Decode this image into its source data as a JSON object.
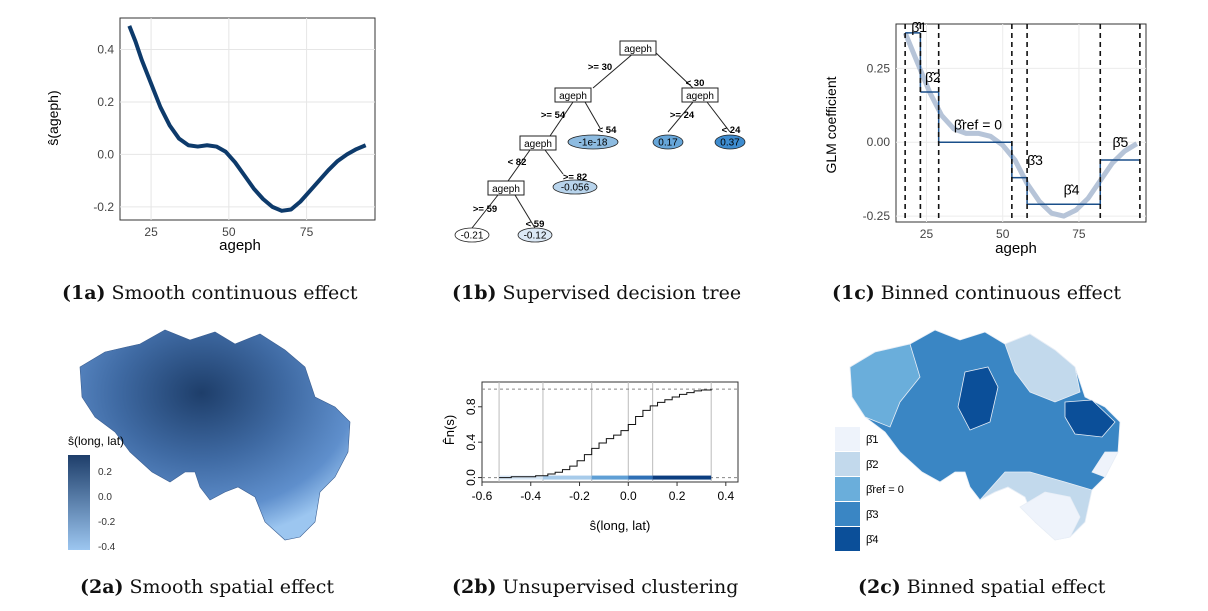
{
  "captions": {
    "c1a": {
      "tag": "(1a)",
      "text": "Smooth continuous effect"
    },
    "c1b": {
      "tag": "(1b)",
      "text": "Supervised decision tree"
    },
    "c1c": {
      "tag": "(1c)",
      "text": "Binned continuous effect"
    },
    "c2a": {
      "tag": "(2a)",
      "text": "Smooth spatial effect"
    },
    "c2b": {
      "tag": "(2b)",
      "text": "Unsupervised clustering"
    },
    "c2c": {
      "tag": "(2c)",
      "text": "Binned spatial effect"
    }
  },
  "chart_data": [
    {
      "id": "1a",
      "type": "line",
      "xlabel": "ageph",
      "ylabel": "ŝ(ageph)",
      "xlim": [
        15,
        97
      ],
      "ylim": [
        -0.25,
        0.52
      ],
      "xticks": [
        25,
        50,
        75
      ],
      "yticks": [
        0.4,
        0.2,
        0.0,
        -0.2
      ],
      "ytick_labels": [
        "0.4",
        "0.2",
        "0.0",
        "-0.2"
      ],
      "grid": true,
      "line_color": "#0d3a6b",
      "x": [
        18,
        20,
        22,
        25,
        28,
        31,
        34,
        37,
        40,
        43,
        46,
        49,
        52,
        55,
        58,
        61,
        64,
        67,
        70,
        73,
        76,
        79,
        82,
        85,
        88,
        91,
        94
      ],
      "y": [
        0.49,
        0.43,
        0.36,
        0.27,
        0.18,
        0.11,
        0.06,
        0.035,
        0.03,
        0.035,
        0.03,
        0.01,
        -0.03,
        -0.08,
        -0.13,
        -0.17,
        -0.2,
        -0.215,
        -0.21,
        -0.18,
        -0.14,
        -0.1,
        -0.06,
        -0.025,
        0.0,
        0.02,
        0.035
      ]
    },
    {
      "id": "1b",
      "type": "tree",
      "nodes": [
        {
          "label": "ageph"
        },
        {
          "label": "ageph"
        },
        {
          "label": "ageph"
        },
        {
          "label": "ageph"
        },
        {
          "label": "ageph"
        },
        {
          "label": "-0.21",
          "color": "#ffffff"
        },
        {
          "label": "-0.12",
          "color": "#dbe8f5"
        },
        {
          "label": "-0.056",
          "color": "#b8d4ec"
        },
        {
          "label": "-1e-18",
          "color": "#8dbbe0"
        },
        {
          "label": "0.17",
          "color": "#67a6d9"
        },
        {
          "label": "0.37",
          "color": "#3e8ccf"
        }
      ],
      "edges": [
        ">= 30",
        "< 30",
        ">= 54",
        "< 54",
        ">= 24",
        "< 24",
        "< 82",
        ">= 82",
        ">= 59",
        "< 59"
      ]
    },
    {
      "id": "1c",
      "type": "step",
      "xlabel": "ageph",
      "ylabel": "GLM coefficient",
      "xlim": [
        15,
        97
      ],
      "ylim": [
        -0.27,
        0.4
      ],
      "xticks": [
        25,
        50,
        75
      ],
      "yticks": [
        0.25,
        0.0,
        -0.25
      ],
      "ytick_labels": [
        "0.25",
        "0.00",
        "-0.25"
      ],
      "breaks": [
        18,
        23,
        29,
        53,
        58,
        82,
        95
      ],
      "bin_values": [
        0.37,
        0.17,
        0.0,
        -0.12,
        -0.21,
        -0.06
      ],
      "bin_labels": [
        "β̂1",
        "β̂2",
        "β̂ref = 0",
        "β̂3",
        "β̂4",
        "β̂5"
      ],
      "smooth_x": [
        18,
        22,
        26,
        30,
        34,
        38,
        42,
        46,
        50,
        54,
        58,
        62,
        66,
        70,
        74,
        78,
        82,
        86,
        90,
        94
      ],
      "smooth_y": [
        0.37,
        0.27,
        0.17,
        0.09,
        0.045,
        0.03,
        0.03,
        0.02,
        -0.01,
        -0.06,
        -0.14,
        -0.2,
        -0.24,
        -0.25,
        -0.23,
        -0.19,
        -0.13,
        -0.07,
        -0.03,
        -0.005
      ],
      "line_color": "#1a4f8a",
      "smooth_color": "#b6c4d8"
    },
    {
      "id": "2a",
      "type": "map",
      "legend_title": "ŝ(long, lat)",
      "legend_ticks": [
        "0.2",
        "0.0",
        "-0.2",
        "-0.4"
      ],
      "legend_range": [
        -0.5,
        0.3
      ],
      "colors": [
        "#9cc6f0",
        "#1e3e6a"
      ]
    },
    {
      "id": "2b",
      "type": "line",
      "xlabel": "ŝ(long, lat)",
      "ylabel": "F̂n(s)",
      "xlim": [
        -0.6,
        0.45
      ],
      "ylim": [
        -0.05,
        1.08
      ],
      "xticks": [
        -0.6,
        -0.4,
        -0.2,
        0.0,
        0.2,
        0.4
      ],
      "xtick_labels": [
        "-0.6",
        "-0.4",
        "-0.2",
        "0.0",
        "0.2",
        "0.4"
      ],
      "yticks": [
        0.0,
        0.4,
        0.8
      ],
      "ytick_labels": [
        "0.0",
        "0.4",
        "0.8"
      ],
      "breaks": [
        -0.53,
        -0.35,
        -0.15,
        0.0,
        0.1,
        0.34
      ],
      "band_colors": [
        "#d7e7f6",
        "#a7cbea",
        "#5f9fd5",
        "#2f70b6",
        "#0c3e80"
      ],
      "x": [
        -0.53,
        -0.48,
        -0.43,
        -0.38,
        -0.33,
        -0.3,
        -0.27,
        -0.24,
        -0.21,
        -0.18,
        -0.15,
        -0.12,
        -0.09,
        -0.06,
        -0.03,
        0.0,
        0.03,
        0.06,
        0.09,
        0.12,
        0.15,
        0.18,
        0.21,
        0.24,
        0.27,
        0.3,
        0.34
      ],
      "y": [
        0.0,
        0.01,
        0.01,
        0.02,
        0.04,
        0.06,
        0.09,
        0.13,
        0.19,
        0.26,
        0.33,
        0.39,
        0.44,
        0.48,
        0.53,
        0.6,
        0.69,
        0.76,
        0.81,
        0.85,
        0.88,
        0.91,
        0.94,
        0.96,
        0.98,
        0.99,
        1.0
      ]
    },
    {
      "id": "2c",
      "type": "map",
      "legend_labels": [
        "β̂1",
        "β̂2",
        "β̂ref = 0",
        "β̂3",
        "β̂4"
      ],
      "legend_colors": [
        "#eef3fb",
        "#c2d9ec",
        "#6aaedb",
        "#3a86c4",
        "#0b4f99"
      ]
    }
  ]
}
